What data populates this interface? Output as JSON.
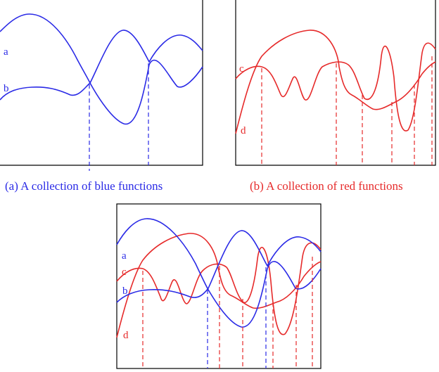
{
  "colors": {
    "blue": "#2a2ae6",
    "red": "#e62a2a",
    "frame": "#000000"
  },
  "panels": {
    "a": {
      "caption": "(a) A collection of blue functions",
      "labels": {
        "a": "a",
        "b": "b"
      }
    },
    "b": {
      "caption": "(b) A collection of red functions",
      "labels": {
        "c": "c",
        "d": "d"
      }
    },
    "c": {
      "labels": {
        "a": "a",
        "b": "b",
        "c": "c",
        "d": "d"
      }
    }
  }
}
